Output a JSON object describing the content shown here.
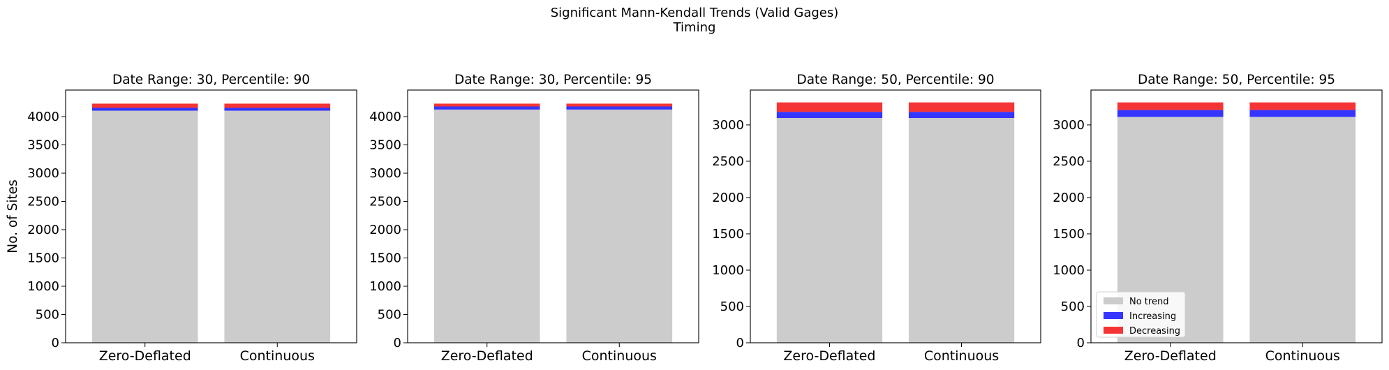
{
  "figure": {
    "title_line1": "Significant Mann-Kendall Trends (Valid Gages)",
    "title_line2": "Timing"
  },
  "colors": {
    "no_trend": "#cccccc",
    "increasing": "#3535ff",
    "decreasing": "#f53535"
  },
  "legend": {
    "placement": "lower-left",
    "panel": 3,
    "entries": [
      "No trend",
      "Increasing",
      "Decreasing"
    ]
  },
  "chart_data": [
    {
      "type": "bar",
      "stacked": true,
      "title": "Date Range: 30, Percentile: 90",
      "ylabel": "No. of Sites",
      "categories": [
        "Zero-Deflated",
        "Continuous"
      ],
      "ylim": [
        0,
        4470
      ],
      "yticks": [
        0,
        500,
        1000,
        1500,
        2000,
        2500,
        3000,
        3500,
        4000
      ],
      "series": [
        {
          "name": "No trend",
          "values": [
            4105,
            4105
          ]
        },
        {
          "name": "Increasing",
          "values": [
            50,
            50
          ]
        },
        {
          "name": "Decreasing",
          "values": [
            75,
            75
          ]
        }
      ]
    },
    {
      "type": "bar",
      "stacked": true,
      "title": "Date Range: 30, Percentile: 95",
      "ylabel": "",
      "categories": [
        "Zero-Deflated",
        "Continuous"
      ],
      "ylim": [
        0,
        4470
      ],
      "yticks": [
        0,
        500,
        1000,
        1500,
        2000,
        2500,
        3000,
        3500,
        4000
      ],
      "series": [
        {
          "name": "No trend",
          "values": [
            4125,
            4125
          ]
        },
        {
          "name": "Increasing",
          "values": [
            55,
            55
          ]
        },
        {
          "name": "Decreasing",
          "values": [
            50,
            50
          ]
        }
      ]
    },
    {
      "type": "bar",
      "stacked": true,
      "title": "Date Range: 50, Percentile: 90",
      "ylabel": "",
      "categories": [
        "Zero-Deflated",
        "Continuous"
      ],
      "ylim": [
        0,
        3480
      ],
      "yticks": [
        0,
        500,
        1000,
        1500,
        2000,
        2500,
        3000
      ],
      "series": [
        {
          "name": "No trend",
          "values": [
            3095,
            3095
          ]
        },
        {
          "name": "Increasing",
          "values": [
            85,
            85
          ]
        },
        {
          "name": "Decreasing",
          "values": [
            130,
            130
          ]
        }
      ]
    },
    {
      "type": "bar",
      "stacked": true,
      "title": "Date Range: 50, Percentile: 95",
      "ylabel": "",
      "categories": [
        "Zero-Deflated",
        "Continuous"
      ],
      "ylim": [
        0,
        3480
      ],
      "yticks": [
        0,
        500,
        1000,
        1500,
        2000,
        2500,
        3000
      ],
      "series": [
        {
          "name": "No trend",
          "values": [
            3110,
            3110
          ]
        },
        {
          "name": "Increasing",
          "values": [
            95,
            95
          ]
        },
        {
          "name": "Decreasing",
          "values": [
            105,
            105
          ]
        }
      ]
    }
  ]
}
